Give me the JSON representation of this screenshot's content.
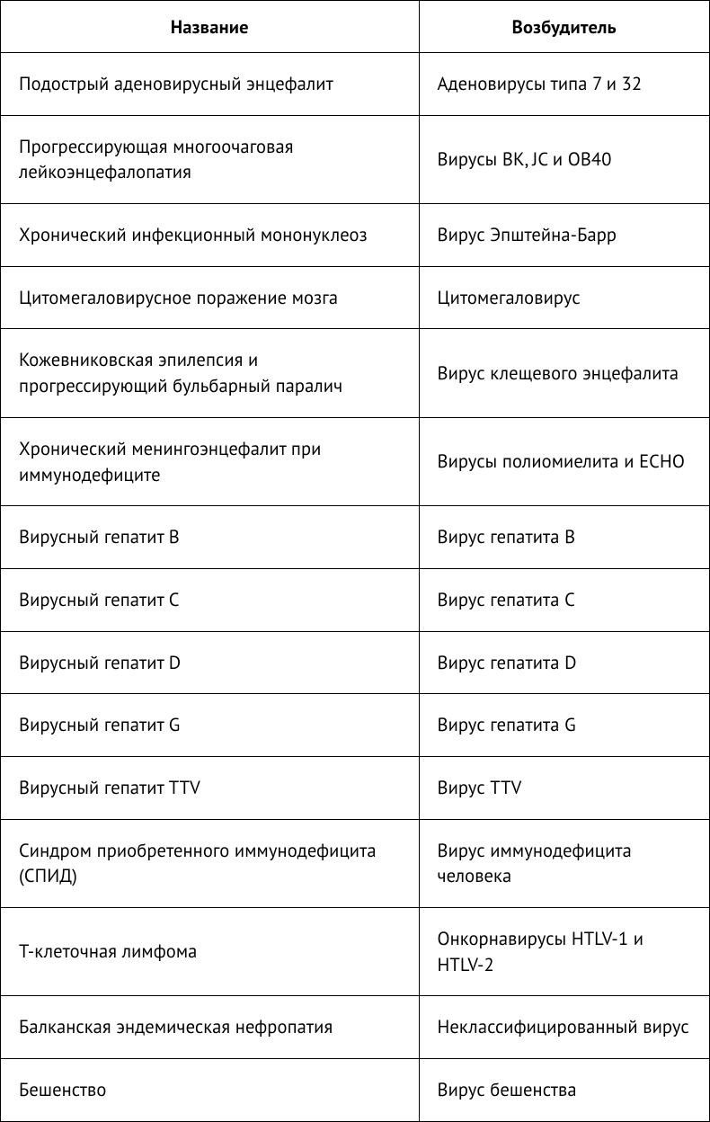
{
  "table": {
    "columns": [
      {
        "label": "Название",
        "width_pct": 59,
        "align": "center"
      },
      {
        "label": "Возбудитель",
        "width_pct": 41,
        "align": "center"
      }
    ],
    "rows": [
      {
        "name": "Подострый аденовирусный энцефалит",
        "pathogen": "Аденовирусы типа 7 и 32"
      },
      {
        "name": "Прогрессирующая многоочаговая лейкоэнцефалопатия",
        "pathogen": "Вирусы ВК, JC и ОВ40"
      },
      {
        "name": "Хронический инфекционный мононуклеоз",
        "pathogen": "Вирус Эпштейна-Барр"
      },
      {
        "name": "Цитомегаловирусное поражение мозга",
        "pathogen": "Цитомегаловирус"
      },
      {
        "name": "Кожевниковская эпилепсия и прогрессирующий бульбарный паралич",
        "pathogen": "Вирус клещевого энцефалита"
      },
      {
        "name": "Хронический менингоэнцефалит при иммунодефиците",
        "pathogen": "Вирусы полиомиелита и ECHO"
      },
      {
        "name": "Вирусный гепатит В",
        "pathogen": "Вирус гепатита В"
      },
      {
        "name": "Вирусный гепатит С",
        "pathogen": "Вирус гепатита С"
      },
      {
        "name": "Вирусный гепатит D",
        "pathogen": "Вирус гепатита D"
      },
      {
        "name": "Вирусный гепатит G",
        "pathogen": "Вирус гепатита G"
      },
      {
        "name": "Вирусный гепатит TTV",
        "pathogen": "Вирус TTV"
      },
      {
        "name": "Синдром приобретенного иммунодефицита (СПИД)",
        "pathogen": "Вирус иммунодефицита человека"
      },
      {
        "name": "Т-клеточная лимфома",
        "pathogen": "Онкорнавирусы HTLV-1 и HTLV-2"
      },
      {
        "name": "Балканская эндемическая нефропатия",
        "pathogen": "Неклассифицированный вирус"
      },
      {
        "name": "Бешенство",
        "pathogen": "Вирус бешенства"
      }
    ],
    "styling": {
      "border_color": "#000000",
      "background_color": "#ffffff",
      "text_color": "#000000",
      "header_fontsize": 20.5,
      "header_fontweight": 700,
      "body_fontsize": 20.5,
      "body_fontweight": 400,
      "line_height": 1.4,
      "cell_padding_v": 20,
      "cell_padding_h": 20,
      "header_padding_v": 15,
      "font_family": "PT Sans Narrow, sans-serif"
    }
  }
}
